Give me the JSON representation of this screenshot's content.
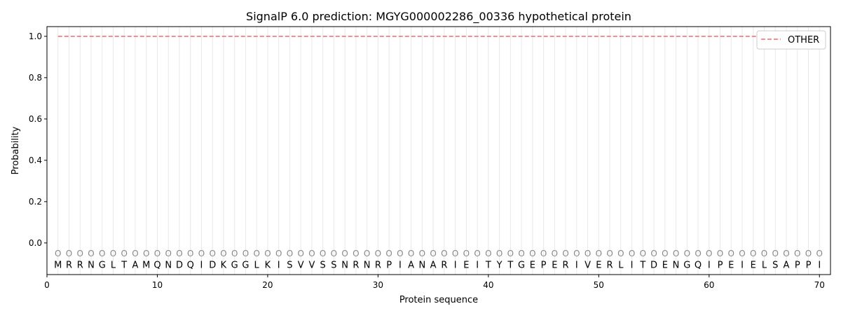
{
  "chart_data": {
    "type": "line",
    "title": "SignalP 6.0 prediction: MGYG000002286_00336 hypothetical protein",
    "xlabel": "Protein sequence",
    "ylabel": "Probability",
    "xlim": [
      0,
      71
    ],
    "ylim": [
      -0.153,
      1.047
    ],
    "xticks": [
      0,
      10,
      20,
      30,
      40,
      50,
      60,
      70
    ],
    "yticks": [
      "0.0",
      "0.2",
      "0.4",
      "0.6",
      "0.8",
      "1.0"
    ],
    "sequence": "MRRNGLTAMQNDQIDKGGLKISVVSSNRNRPIANARIEITYTGEPERIVERLITDENGQIPEIELSAPPI",
    "marker_label": "O",
    "marker_y": -0.05,
    "series": [
      {
        "name": "OTHER",
        "color": "#f08080",
        "style": "dashed",
        "x_range": [
          1,
          70
        ],
        "value": 1.0
      }
    ],
    "legend": "top-right",
    "grid": "vertical lines at each residue"
  }
}
